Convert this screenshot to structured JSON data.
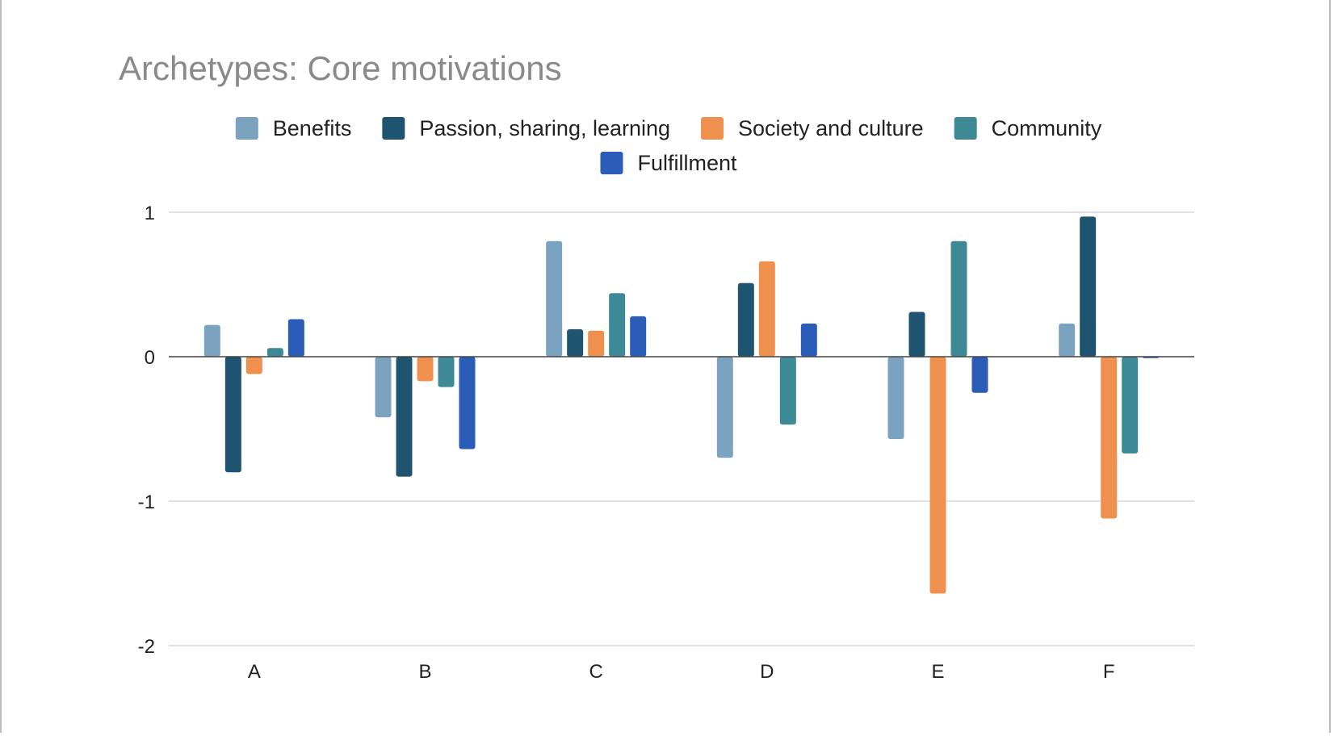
{
  "chart_data": {
    "type": "bar",
    "title": "Archetypes: Core motivations",
    "xlabel": "",
    "ylabel": "",
    "categories": [
      "A",
      "B",
      "C",
      "D",
      "E",
      "F"
    ],
    "ylim": [
      -2,
      1
    ],
    "yticks": [
      "1",
      "0",
      "-1",
      "-2"
    ],
    "ytick_values": [
      1,
      0,
      -1,
      -2
    ],
    "grid": true,
    "legend_position": "top",
    "series": [
      {
        "name": "Benefits",
        "color": "#7ba3bf",
        "values": [
          0.22,
          -0.42,
          0.8,
          -0.7,
          -0.57,
          0.23
        ]
      },
      {
        "name": "Passion, sharing, learning",
        "color": "#1f5470",
        "values": [
          -0.8,
          -0.83,
          0.19,
          0.51,
          0.31,
          0.97
        ]
      },
      {
        "name": "Society and culture",
        "color": "#f0904f",
        "values": [
          -0.12,
          -0.17,
          0.18,
          0.66,
          -1.64,
          -1.12
        ]
      },
      {
        "name": "Community",
        "color": "#3d8a96",
        "values": [
          0.06,
          -0.21,
          0.44,
          -0.47,
          0.8,
          -0.67
        ]
      },
      {
        "name": "Fulfillment",
        "color": "#2a5cb8",
        "values": [
          0.26,
          -0.64,
          0.28,
          0.23,
          -0.25,
          -0.01
        ]
      }
    ]
  }
}
